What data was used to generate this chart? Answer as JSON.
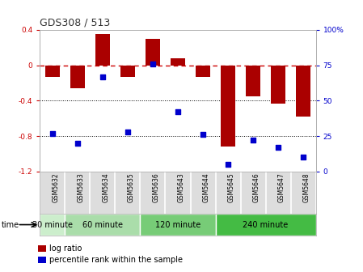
{
  "title": "GDS308 / 513",
  "samples": [
    "GSM5632",
    "GSM5633",
    "GSM5634",
    "GSM5635",
    "GSM5636",
    "GSM5643",
    "GSM5644",
    "GSM5645",
    "GSM5646",
    "GSM5647",
    "GSM5648"
  ],
  "log_ratio": [
    -0.13,
    -0.26,
    0.35,
    -0.13,
    0.3,
    0.08,
    -0.13,
    -0.92,
    -0.35,
    -0.43,
    -0.58
  ],
  "percentile": [
    27,
    20,
    67,
    28,
    76,
    42,
    26,
    5,
    22,
    17,
    10
  ],
  "groups": [
    {
      "label": "30 minute",
      "start": 0,
      "end": 1,
      "color": "#cceecc"
    },
    {
      "label": "60 minute",
      "start": 1,
      "end": 4,
      "color": "#aaddaa"
    },
    {
      "label": "120 minute",
      "start": 4,
      "end": 7,
      "color": "#77cc77"
    },
    {
      "label": "240 minute",
      "start": 7,
      "end": 11,
      "color": "#44bb44"
    }
  ],
  "bar_color": "#aa0000",
  "scatter_color": "#0000cc",
  "ylim_left": [
    -1.2,
    0.4
  ],
  "ylim_right": [
    0,
    100
  ],
  "yticks_left": [
    -1.2,
    -0.8,
    -0.4,
    0.0,
    0.4
  ],
  "yticks_right": [
    0,
    25,
    50,
    75,
    100
  ],
  "ytick_labels_right": [
    "0",
    "25",
    "50",
    "75",
    "100%"
  ],
  "hline_zero": 0.0,
  "hline_dot1": -0.4,
  "hline_dot2": -0.8,
  "bar_width": 0.6,
  "background_color": "#ffffff"
}
